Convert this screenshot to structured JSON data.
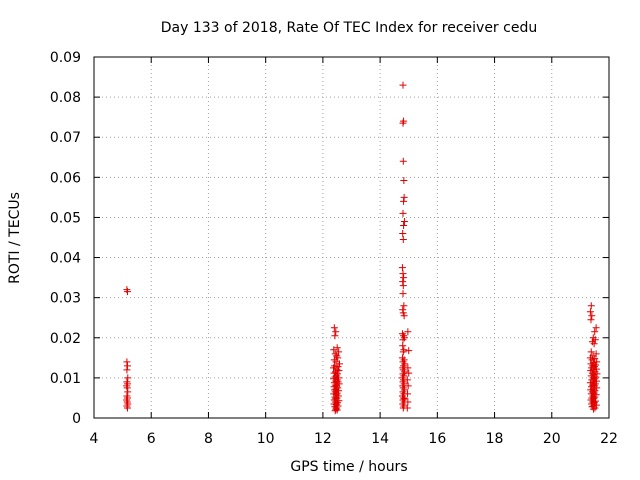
{
  "chart_data": {
    "type": "scatter",
    "title": "Day 133 of 2018, Rate Of TEC Index for receiver cedu",
    "xlabel": "GPS time / hours",
    "ylabel": "ROTI / TECUs",
    "xlim": [
      4,
      22
    ],
    "ylim": [
      0,
      0.09
    ],
    "xticks": [
      "4",
      "6",
      "8",
      "10",
      "12",
      "14",
      "16",
      "18",
      "20",
      "22"
    ],
    "yticks": [
      "0",
      "0.01",
      "0.02",
      "0.03",
      "0.04",
      "0.05",
      "0.06",
      "0.07",
      "0.08",
      "0.09"
    ],
    "grid": true,
    "marker": "plus",
    "color": "#e00000",
    "series": [
      {
        "points": [
          [
            5.15,
            0.032
          ],
          [
            5.17,
            0.0315
          ],
          [
            5.15,
            0.014
          ],
          [
            5.17,
            0.013
          ],
          [
            5.15,
            0.012
          ],
          [
            5.18,
            0.01
          ],
          [
            5.15,
            0.009
          ],
          [
            5.17,
            0.0085
          ],
          [
            5.14,
            0.008
          ],
          [
            5.16,
            0.0075
          ],
          [
            5.18,
            0.0065
          ],
          [
            5.15,
            0.0055
          ],
          [
            5.17,
            0.005
          ],
          [
            5.14,
            0.0045
          ],
          [
            5.16,
            0.004
          ],
          [
            5.18,
            0.0035
          ],
          [
            5.15,
            0.003
          ],
          [
            5.17,
            0.0025
          ],
          [
            12.4,
            0.0225
          ],
          [
            12.45,
            0.0215
          ],
          [
            12.42,
            0.0205
          ],
          [
            12.5,
            0.0175
          ],
          [
            12.38,
            0.017
          ],
          [
            12.55,
            0.0165
          ],
          [
            12.43,
            0.016
          ],
          [
            12.48,
            0.0155
          ],
          [
            12.52,
            0.015
          ],
          [
            12.4,
            0.0145
          ],
          [
            12.46,
            0.014
          ],
          [
            12.58,
            0.0135
          ],
          [
            12.41,
            0.013
          ],
          [
            12.53,
            0.0128
          ],
          [
            12.37,
            0.0125
          ],
          [
            12.49,
            0.012
          ],
          [
            12.56,
            0.0118
          ],
          [
            12.44,
            0.0115
          ],
          [
            12.39,
            0.0112
          ],
          [
            12.51,
            0.011
          ],
          [
            12.47,
            0.0105
          ],
          [
            12.42,
            0.0102
          ],
          [
            12.55,
            0.01
          ],
          [
            12.38,
            0.0098
          ],
          [
            12.5,
            0.0095
          ],
          [
            12.45,
            0.0092
          ],
          [
            12.53,
            0.009
          ],
          [
            12.4,
            0.0088
          ],
          [
            12.57,
            0.0085
          ],
          [
            12.44,
            0.0082
          ],
          [
            12.48,
            0.008
          ],
          [
            12.39,
            0.0078
          ],
          [
            12.52,
            0.0075
          ],
          [
            12.46,
            0.0072
          ],
          [
            12.41,
            0.007
          ],
          [
            12.55,
            0.0068
          ],
          [
            12.43,
            0.0065
          ],
          [
            12.5,
            0.0062
          ],
          [
            12.38,
            0.006
          ],
          [
            12.47,
            0.0058
          ],
          [
            12.54,
            0.0055
          ],
          [
            12.42,
            0.0052
          ],
          [
            12.49,
            0.005
          ],
          [
            12.45,
            0.0048
          ],
          [
            12.4,
            0.0045
          ],
          [
            12.56,
            0.0043
          ],
          [
            12.44,
            0.004
          ],
          [
            12.51,
            0.0038
          ],
          [
            12.39,
            0.0035
          ],
          [
            12.47,
            0.0033
          ],
          [
            12.53,
            0.003
          ],
          [
            12.42,
            0.0028
          ],
          [
            12.48,
            0.0025
          ],
          [
            12.45,
            0.0022
          ],
          [
            12.5,
            0.002
          ],
          [
            12.43,
            0.0018
          ],
          [
            14.8,
            0.083
          ],
          [
            14.82,
            0.074
          ],
          [
            14.8,
            0.0735
          ],
          [
            14.81,
            0.064
          ],
          [
            14.83,
            0.0592
          ],
          [
            14.84,
            0.055
          ],
          [
            14.82,
            0.054
          ],
          [
            14.85,
            0.049
          ],
          [
            14.8,
            0.051
          ],
          [
            14.82,
            0.048
          ],
          [
            14.79,
            0.046
          ],
          [
            14.81,
            0.0445
          ],
          [
            14.78,
            0.0375
          ],
          [
            14.8,
            0.036
          ],
          [
            14.82,
            0.035
          ],
          [
            14.79,
            0.034
          ],
          [
            14.81,
            0.033
          ],
          [
            14.8,
            0.031
          ],
          [
            14.83,
            0.028
          ],
          [
            14.79,
            0.027
          ],
          [
            14.81,
            0.0262
          ],
          [
            14.84,
            0.0255
          ],
          [
            14.78,
            0.021
          ],
          [
            14.82,
            0.0205
          ],
          [
            14.85,
            0.02
          ],
          [
            14.8,
            0.0195
          ],
          [
            14.97,
            0.0215
          ],
          [
            14.79,
            0.018
          ],
          [
            14.83,
            0.017
          ],
          [
            14.81,
            0.0165
          ],
          [
            15.0,
            0.0168
          ],
          [
            14.78,
            0.015
          ],
          [
            14.84,
            0.0145
          ],
          [
            14.8,
            0.014
          ],
          [
            14.86,
            0.0135
          ],
          [
            14.82,
            0.013
          ],
          [
            14.79,
            0.0125
          ],
          [
            14.97,
            0.0125
          ],
          [
            14.81,
            0.012
          ],
          [
            14.85,
            0.0115
          ],
          [
            14.8,
            0.011
          ],
          [
            15.0,
            0.0112
          ],
          [
            14.83,
            0.0105
          ],
          [
            14.78,
            0.01
          ],
          [
            14.82,
            0.0095
          ],
          [
            14.95,
            0.0095
          ],
          [
            14.8,
            0.009
          ],
          [
            14.84,
            0.0085
          ],
          [
            14.79,
            0.008
          ],
          [
            14.98,
            0.008
          ],
          [
            14.81,
            0.0075
          ],
          [
            14.85,
            0.007
          ],
          [
            14.8,
            0.0065
          ],
          [
            14.83,
            0.006
          ],
          [
            14.96,
            0.006
          ],
          [
            14.78,
            0.0055
          ],
          [
            14.82,
            0.005
          ],
          [
            14.86,
            0.0048
          ],
          [
            14.8,
            0.0045
          ],
          [
            14.84,
            0.004
          ],
          [
            14.97,
            0.004
          ],
          [
            14.79,
            0.0035
          ],
          [
            14.83,
            0.003
          ],
          [
            14.81,
            0.0025
          ],
          [
            14.95,
            0.0025
          ],
          [
            21.38,
            0.028
          ],
          [
            21.35,
            0.0265
          ],
          [
            21.4,
            0.0255
          ],
          [
            21.37,
            0.0245
          ],
          [
            21.55,
            0.0225
          ],
          [
            21.5,
            0.0215
          ],
          [
            21.45,
            0.02
          ],
          [
            21.52,
            0.0195
          ],
          [
            21.42,
            0.019
          ],
          [
            21.48,
            0.0185
          ],
          [
            21.38,
            0.0165
          ],
          [
            21.55,
            0.016
          ],
          [
            21.44,
            0.0155
          ],
          [
            21.35,
            0.015
          ],
          [
            21.5,
            0.0148
          ],
          [
            21.41,
            0.0145
          ],
          [
            21.57,
            0.014
          ],
          [
            21.46,
            0.0138
          ],
          [
            21.37,
            0.0135
          ],
          [
            21.53,
            0.0132
          ],
          [
            21.43,
            0.013
          ],
          [
            21.49,
            0.0128
          ],
          [
            21.39,
            0.0125
          ],
          [
            21.56,
            0.0122
          ],
          [
            21.45,
            0.012
          ],
          [
            21.36,
            0.0118
          ],
          [
            21.51,
            0.0115
          ],
          [
            21.42,
            0.0112
          ],
          [
            21.58,
            0.011
          ],
          [
            21.47,
            0.0108
          ],
          [
            21.38,
            0.0105
          ],
          [
            21.54,
            0.0102
          ],
          [
            21.44,
            0.01
          ],
          [
            21.5,
            0.0098
          ],
          [
            21.4,
            0.0095
          ],
          [
            21.56,
            0.0092
          ],
          [
            21.46,
            0.009
          ],
          [
            21.35,
            0.0088
          ],
          [
            21.52,
            0.0085
          ],
          [
            21.43,
            0.0082
          ],
          [
            21.49,
            0.008
          ],
          [
            21.39,
            0.0078
          ],
          [
            21.57,
            0.0075
          ],
          [
            21.45,
            0.0072
          ],
          [
            21.36,
            0.007
          ],
          [
            21.51,
            0.0068
          ],
          [
            21.42,
            0.0065
          ],
          [
            21.48,
            0.0062
          ],
          [
            21.38,
            0.006
          ],
          [
            21.55,
            0.0058
          ],
          [
            21.44,
            0.0055
          ],
          [
            21.5,
            0.0052
          ],
          [
            21.4,
            0.005
          ],
          [
            21.47,
            0.0048
          ],
          [
            21.37,
            0.0045
          ],
          [
            21.53,
            0.0042
          ],
          [
            21.43,
            0.004
          ],
          [
            21.49,
            0.0038
          ],
          [
            21.39,
            0.0035
          ],
          [
            21.56,
            0.0032
          ],
          [
            21.45,
            0.003
          ],
          [
            21.41,
            0.0028
          ],
          [
            21.51,
            0.0025
          ],
          [
            21.46,
            0.0022
          ]
        ]
      }
    ]
  }
}
